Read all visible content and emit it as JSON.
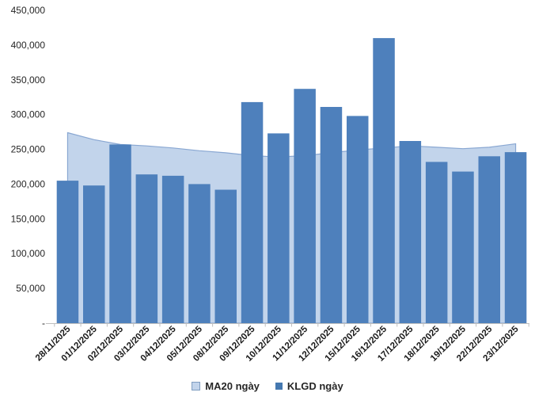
{
  "chart_data": {
    "type": "bar",
    "title": "",
    "xlabel": "",
    "ylabel": "",
    "categories": [
      "28/11/2025",
      "01/12/2025",
      "02/12/2025",
      "03/12/2025",
      "04/12/2025",
      "05/12/2025",
      "08/12/2025",
      "09/12/2025",
      "10/12/2025",
      "11/12/2025",
      "12/12/2025",
      "15/12/2025",
      "16/12/2025",
      "17/12/2025",
      "18/12/2025",
      "19/12/2025",
      "22/12/2025",
      "23/12/2025"
    ],
    "series": [
      {
        "name": "MA20 ngày",
        "chart_type": "area",
        "values": [
          274000,
          264000,
          257000,
          255000,
          252000,
          248000,
          245000,
          241000,
          239000,
          241000,
          245000,
          249000,
          252000,
          255000,
          253000,
          251000,
          253000,
          258000
        ]
      },
      {
        "name": "KLGD ngày",
        "chart_type": "bar",
        "values": [
          205000,
          198000,
          257000,
          214000,
          212000,
          200000,
          192000,
          318000,
          273000,
          337000,
          311000,
          298000,
          410000,
          262000,
          232000,
          218000,
          240000,
          246000
        ]
      }
    ],
    "ylim": [
      0,
      450000
    ],
    "ytick_step": 50000,
    "ytick_zero_label": "-",
    "ytick_labels": [
      "-",
      "50,000",
      "100,000",
      "150,000",
      "200,000",
      "250,000",
      "300,000",
      "350,000",
      "400,000",
      "450,000"
    ],
    "grid": false,
    "legend_position": "bottom",
    "colors": {
      "bar_fill": "#4E80BC",
      "area_fill": "#C2D4EB",
      "area_line": "#89A7D2",
      "axis_line": "#BFBFBF",
      "y_tick_label": "#262626",
      "x_tick_label": "#1A1A1A",
      "legend_text": "#262626",
      "ma20_swatch_fill": "#C2D4EB",
      "ma20_swatch_border": "#7F9DC0",
      "klgd_swatch_fill": "#4578B0"
    }
  }
}
